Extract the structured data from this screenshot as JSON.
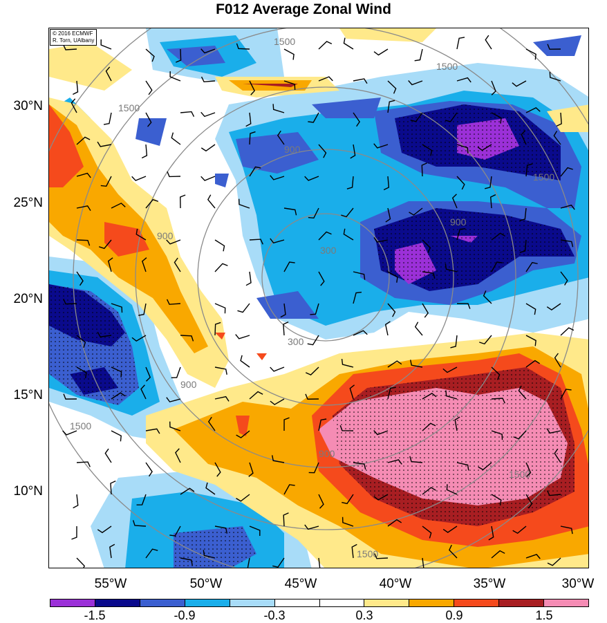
{
  "title": "F012 Average Zonal Wind",
  "credit": {
    "line1": "© 2016 ECMWF",
    "line2": "R. Torn, UAlbany"
  },
  "y_axis": {
    "labels": [
      "30°N",
      "25°N",
      "20°N",
      "15°N",
      "10°N"
    ]
  },
  "x_axis": {
    "labels": [
      "55°W",
      "50°W",
      "45°W",
      "40°W",
      "35°W",
      "30°W"
    ]
  },
  "range_rings": {
    "labels": [
      "300",
      "900",
      "1500"
    ]
  },
  "colorbar": {
    "colors": [
      "#9b30d8",
      "#0a0a8c",
      "#3b5fd0",
      "#1aaeea",
      "#a8dcf8",
      "#ffffff",
      "#ffffff",
      "#ffe98a",
      "#f9a800",
      "#f54a1c",
      "#a81e22",
      "#f58cb4"
    ],
    "labels": [
      "-1.5",
      "-0.9",
      "-0.3",
      "0.3",
      "0.9",
      "1.5"
    ]
  },
  "colors": {
    "purple": "#9b30d8",
    "navy": "#0a0a8c",
    "blue": "#3b5fd0",
    "cyan": "#1aaeea",
    "light_blue": "#a8dcf8",
    "light_yellow": "#ffe98a",
    "orange": "#f9a800",
    "red_orange": "#f54a1c",
    "dark_red": "#a81e22",
    "pink": "#f58cb4"
  }
}
